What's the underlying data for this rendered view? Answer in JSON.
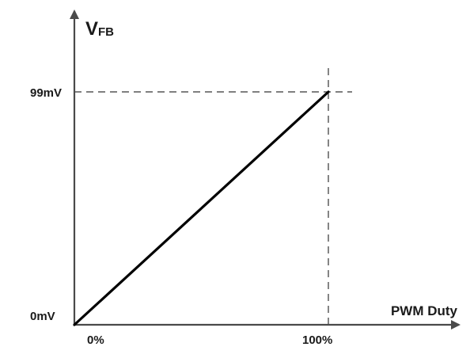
{
  "chart_data": {
    "type": "line",
    "title": "",
    "xlabel": "PWM Duty",
    "ylabel_main": "V",
    "ylabel_sub": "FB",
    "x_ticks": [
      "0%",
      "100%"
    ],
    "y_ticks": [
      "0mV",
      "99mV"
    ],
    "xlim": [
      0,
      100
    ],
    "ylim": [
      0,
      99
    ],
    "x_unit": "%",
    "y_unit": "mV",
    "series": [
      {
        "x": [
          0,
          100
        ],
        "y": [
          0,
          99
        ]
      }
    ],
    "reference_lines": {
      "x": [
        100
      ],
      "y": [
        99
      ],
      "style": "dashed"
    },
    "grid": false,
    "legend": "none",
    "colors": {
      "line": "#000000",
      "axis": "#4a4a4a",
      "text": "#1a1a1a",
      "dashed": "#333333"
    }
  }
}
